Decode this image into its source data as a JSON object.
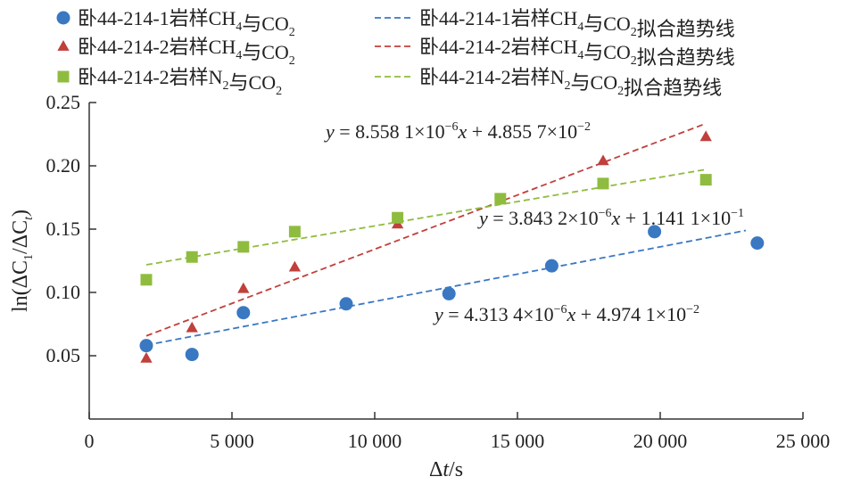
{
  "chart_data": {
    "type": "scatter",
    "xlabel": "Δt/s",
    "ylabel": "ln(ΔC1/ΔCt)",
    "xlim": [
      0,
      25000
    ],
    "ylim": [
      0,
      0.25
    ],
    "x_ticks": [
      "0",
      "5 000",
      "10 000",
      "15 000",
      "20 000",
      "25 000"
    ],
    "y_ticks": [
      "0.05",
      "0.10",
      "0.15",
      "0.20",
      "0.25"
    ],
    "grid": false,
    "legend_position": "top-left",
    "series": [
      {
        "name": "卧44-214-1岩样CH4与CO2",
        "trend_name": "卧44-214-1岩样CH4与CO2拟合趋势线",
        "marker": "circle",
        "color": "#3a78c2",
        "x": [
          2000,
          3600,
          5400,
          9000,
          12600,
          16200,
          19800,
          23400
        ],
        "y": [
          0.058,
          0.051,
          0.084,
          0.091,
          0.099,
          0.121,
          0.148,
          0.139
        ],
        "fit": {
          "slope": 4.3134e-06,
          "intercept": 0.049741,
          "x_range": [
            2000,
            23000
          ]
        },
        "equation": {
          "y": "y",
          "eq": " = 4.313 4×10",
          "exp1": "−6",
          "x": "x",
          "plus": " + 4.974 1×10",
          "exp2": "−2"
        }
      },
      {
        "name": "卧44-214-2岩样CH4与CO2",
        "trend_name": "卧44-214-2岩样CH4与CO2拟合趋势线",
        "marker": "triangle",
        "color": "#c0403c",
        "x": [
          2000,
          3600,
          5400,
          7200,
          10800,
          18000,
          21600
        ],
        "y": [
          0.048,
          0.072,
          0.103,
          0.12,
          0.154,
          0.204,
          0.223
        ],
        "fit": {
          "slope": 8.5581e-06,
          "intercept": 0.048557,
          "x_range": [
            2000,
            21600
          ]
        },
        "equation": {
          "y": "y",
          "eq": " = 8.558 1×10",
          "exp1": "−6",
          "x": "x",
          "plus": " + 4.855 7×10",
          "exp2": "−2"
        }
      },
      {
        "name": "卧44-214-2岩样N2与CO2",
        "trend_name": "卧44-214-2岩样N2与CO2拟合趋势线",
        "marker": "square",
        "color": "#8fbc3f",
        "x": [
          2000,
          3600,
          5400,
          7200,
          10800,
          14400,
          18000,
          21600
        ],
        "y": [
          0.11,
          0.128,
          0.136,
          0.148,
          0.159,
          0.174,
          0.186,
          0.189
        ],
        "fit": {
          "slope": 3.8432e-06,
          "intercept": 0.11411,
          "x_range": [
            2000,
            21600
          ]
        },
        "equation": {
          "y": "y",
          "eq": " = 3.843 2×10",
          "exp1": "−6",
          "x": "x",
          "plus": " + 1.141 1×10",
          "exp2": "−1"
        }
      }
    ]
  }
}
